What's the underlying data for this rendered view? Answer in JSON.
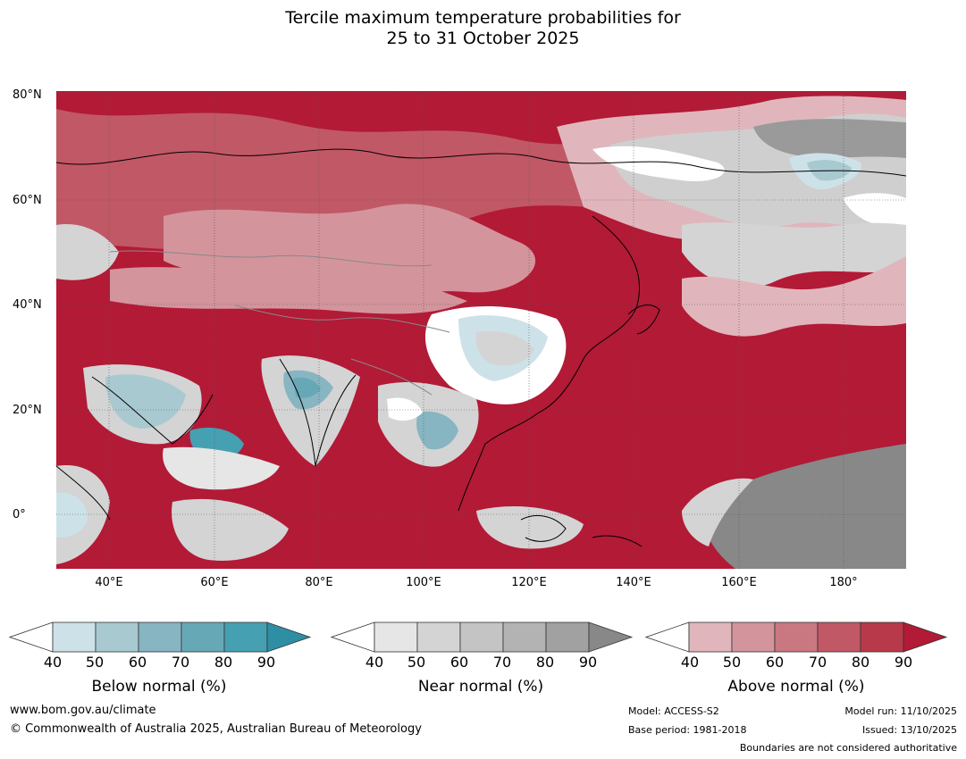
{
  "title_line1": "Tercile maximum temperature probabilities for",
  "title_line2": "25 to 31 October 2025",
  "lat_labels": [
    "80°N",
    "60°N",
    "40°N",
    "20°N",
    "0°"
  ],
  "lon_labels": [
    "40°E",
    "60°E",
    "80°E",
    "100°E",
    "120°E",
    "140°E",
    "160°E",
    "180°"
  ],
  "legends": {
    "below": {
      "label": "Below normal (%)",
      "ticks": [
        "40",
        "50",
        "60",
        "70",
        "80",
        "90"
      ],
      "colors": [
        "#cde2e8",
        "#a9c9d1",
        "#87b5c2",
        "#67a8b6",
        "#45a0b2",
        "#2e8ea3"
      ]
    },
    "near": {
      "label": "Near normal (%)",
      "ticks": [
        "40",
        "50",
        "60",
        "70",
        "80",
        "90"
      ],
      "colors": [
        "#e6e6e6",
        "#d4d4d4",
        "#c4c4c4",
        "#b3b3b3",
        "#a1a1a1",
        "#888888"
      ]
    },
    "above": {
      "label": "Above normal (%)",
      "ticks": [
        "40",
        "50",
        "60",
        "70",
        "80",
        "90"
      ],
      "colors": [
        "#e0b6bc",
        "#d4949c",
        "#c97780",
        "#c15866",
        "#b8394a",
        "#b21a36"
      ]
    }
  },
  "footer": {
    "url": "www.bom.gov.au/climate",
    "copyright": "© Commonwealth of Australia 2025, Australian Bureau of Meteorology",
    "model": "Model: ACCESS-S2",
    "base_period": "Base period: 1981-2018",
    "model_run": "Model run: 11/10/2025",
    "issued": "Issued: 13/10/2025",
    "disclaimer": "Boundaries are not considered authoritative"
  },
  "colors": {
    "above_max": "#b21a36",
    "near_max": "#888888",
    "below_mid": "#87b5c2"
  }
}
